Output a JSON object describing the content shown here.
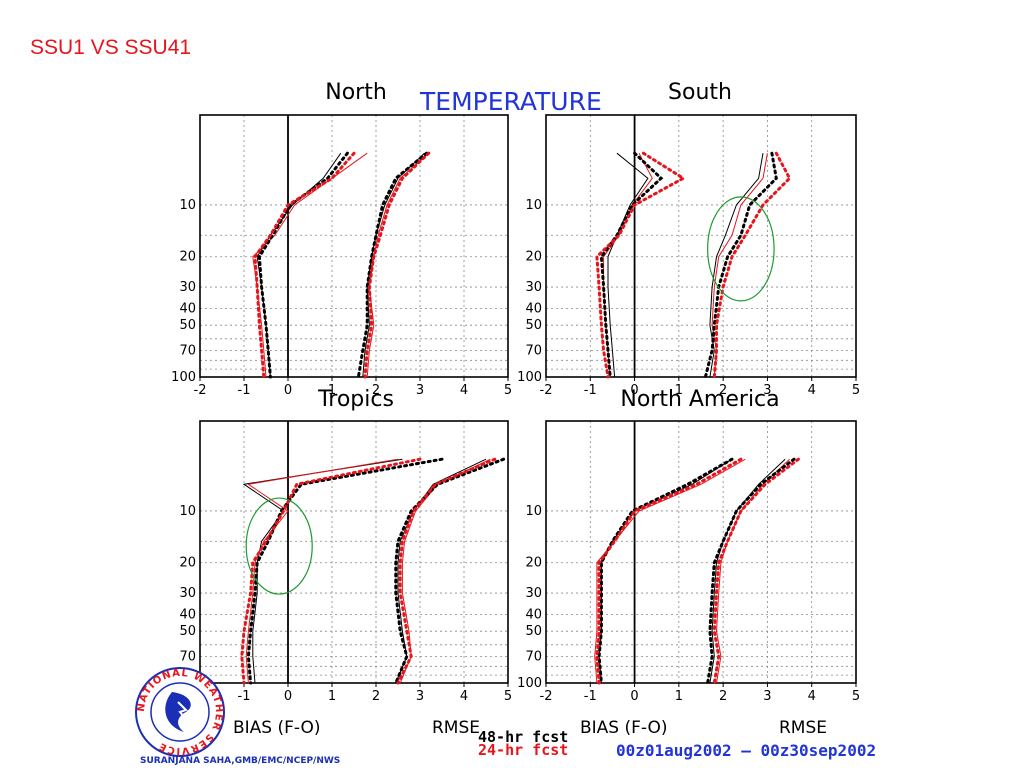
{
  "slide_title": "SSU1 VS SSU41",
  "credit": "SURANJANA SAHA,GMB/EMC/NCEP/NWS",
  "logo": {
    "icon": "nws-logo-icon",
    "text": "NATIONAL WEATHER SERVICE"
  },
  "colors": {
    "series_48hr": "#000000",
    "series_24hr": "#e8141b",
    "title_blue": "#2134d8",
    "annotation_circle": "#1f9a2e"
  },
  "chart_data": {
    "type": "line",
    "title": "TEMPERATURE",
    "date_range": "00z01aug2002 – 00z30sep2002",
    "xlabel_bias": "BIAS (F-O)",
    "xlabel_rmse": "RMSE",
    "xlim": [
      -2,
      5
    ],
    "x_ticks": [
      "-2",
      "-1",
      "0",
      "1",
      "2",
      "3",
      "4",
      "5"
    ],
    "y_scale": "log",
    "y_ticks": [
      "10",
      "20",
      "30",
      "40",
      "50",
      "70",
      "100"
    ],
    "y_levels": [
      5,
      7,
      10,
      15,
      20,
      30,
      50,
      70,
      100
    ],
    "legend": [
      {
        "label": "48-hr fcst",
        "color": "#000000"
      },
      {
        "label": "24-hr fcst",
        "color": "#e8141b"
      }
    ],
    "series_styles": [
      {
        "name": "SSU1 48-hr fcst",
        "color": "#000000",
        "dash": ""
      },
      {
        "name": "SSU1 24-hr fcst",
        "color": "#e8141b",
        "dash": ""
      },
      {
        "name": "SSU41 48-hr fcst",
        "color": "#000000",
        "dash": "dotted"
      },
      {
        "name": "SSU41 24-hr fcst",
        "color": "#e8141b",
        "dash": "dotted"
      }
    ],
    "panels": [
      {
        "title": "North",
        "bias": [
          [
            1.2,
            0.8,
            0.1,
            -0.4,
            -0.7,
            -0.6,
            -0.5,
            -0.45,
            -0.4
          ],
          [
            1.8,
            1.0,
            0.15,
            -0.3,
            -0.8,
            -0.7,
            -0.6,
            -0.55,
            -0.5
          ],
          [
            1.35,
            0.9,
            0.05,
            -0.35,
            -0.65,
            -0.6,
            -0.5,
            -0.45,
            -0.4
          ],
          [
            1.5,
            1.0,
            0.0,
            -0.4,
            -0.75,
            -0.7,
            -0.65,
            -0.6,
            -0.55
          ]
        ],
        "rmse": [
          [
            3.1,
            2.5,
            2.2,
            2.0,
            1.9,
            1.8,
            1.85,
            1.75,
            1.7
          ],
          [
            3.2,
            2.55,
            2.25,
            2.05,
            1.95,
            1.85,
            1.95,
            1.85,
            1.8
          ],
          [
            3.15,
            2.45,
            2.15,
            2.0,
            1.9,
            1.8,
            1.8,
            1.7,
            1.6
          ],
          [
            3.2,
            2.6,
            2.3,
            2.1,
            1.95,
            1.85,
            1.9,
            1.8,
            1.75
          ]
        ],
        "circles": []
      },
      {
        "title": "South",
        "bias": [
          [
            -0.4,
            0.3,
            -0.1,
            -0.4,
            -0.6,
            -0.6,
            -0.55,
            -0.5,
            -0.45
          ],
          [
            0.1,
            0.4,
            -0.05,
            -0.35,
            -0.7,
            -0.7,
            -0.65,
            -0.6,
            -0.55
          ],
          [
            0.0,
            0.6,
            -0.05,
            -0.4,
            -0.75,
            -0.7,
            -0.65,
            -0.6,
            -0.55
          ],
          [
            0.2,
            1.1,
            0.0,
            -0.35,
            -0.85,
            -0.8,
            -0.75,
            -0.7,
            -0.6
          ]
        ],
        "rmse": [
          [
            2.9,
            2.8,
            2.3,
            2.05,
            1.85,
            1.75,
            1.7,
            1.8,
            1.7
          ],
          [
            3.0,
            2.9,
            2.4,
            2.2,
            1.9,
            1.8,
            1.75,
            1.85,
            1.8
          ],
          [
            3.1,
            3.2,
            2.6,
            2.4,
            2.1,
            1.9,
            1.8,
            1.75,
            1.6
          ],
          [
            3.2,
            3.5,
            2.9,
            2.5,
            2.2,
            2.0,
            1.85,
            1.85,
            1.8
          ]
        ],
        "circles": [
          {
            "x": 2.4,
            "y": 18,
            "rx": 0.75,
            "ry": 52
          }
        ]
      },
      {
        "title": "Tropics",
        "bias": [
          [
            2.6,
            -1.0,
            -0.1,
            -0.6,
            -0.7,
            -0.7,
            -0.8,
            -0.8,
            -0.75
          ],
          [
            2.5,
            -0.9,
            0.0,
            -0.55,
            -0.75,
            -0.8,
            -0.9,
            -0.95,
            -0.9
          ],
          [
            3.5,
            0.3,
            -0.15,
            -0.45,
            -0.7,
            -0.75,
            -0.85,
            -0.9,
            -0.85
          ],
          [
            3.0,
            0.2,
            -0.1,
            -0.5,
            -0.8,
            -0.85,
            -1.0,
            -1.05,
            -1.0
          ]
        ],
        "rmse": [
          [
            4.5,
            3.3,
            2.85,
            2.55,
            2.5,
            2.5,
            2.6,
            2.7,
            2.45
          ],
          [
            4.6,
            3.4,
            2.9,
            2.65,
            2.6,
            2.6,
            2.75,
            2.8,
            2.55
          ],
          [
            4.9,
            3.4,
            2.8,
            2.5,
            2.45,
            2.45,
            2.55,
            2.7,
            2.45
          ],
          [
            4.7,
            3.35,
            2.85,
            2.6,
            2.55,
            2.55,
            2.7,
            2.8,
            2.5
          ]
        ],
        "circles": [
          {
            "x": -0.2,
            "y": 16,
            "rx": 0.75,
            "ry": 48
          }
        ]
      },
      {
        "title": "North America",
        "bias": [
          [
            2.2,
            1.3,
            0.0,
            -0.5,
            -0.75,
            -0.75,
            -0.75,
            -0.8,
            -0.75
          ],
          [
            2.5,
            1.5,
            0.1,
            -0.45,
            -0.85,
            -0.85,
            -0.85,
            -0.9,
            -0.85
          ],
          [
            2.2,
            1.2,
            -0.05,
            -0.5,
            -0.75,
            -0.75,
            -0.75,
            -0.8,
            -0.75
          ],
          [
            2.4,
            1.4,
            0.0,
            -0.45,
            -0.8,
            -0.8,
            -0.8,
            -0.85,
            -0.8
          ]
        ],
        "rmse": [
          [
            3.4,
            2.8,
            2.3,
            2.0,
            1.85,
            1.8,
            1.75,
            1.8,
            1.7
          ],
          [
            3.5,
            2.9,
            2.4,
            2.1,
            1.95,
            1.9,
            1.85,
            1.95,
            1.85
          ],
          [
            3.6,
            2.85,
            2.3,
            2.0,
            1.8,
            1.75,
            1.7,
            1.75,
            1.65
          ],
          [
            3.7,
            2.95,
            2.4,
            2.1,
            1.9,
            1.85,
            1.8,
            1.9,
            1.8
          ]
        ],
        "circles": []
      }
    ]
  }
}
